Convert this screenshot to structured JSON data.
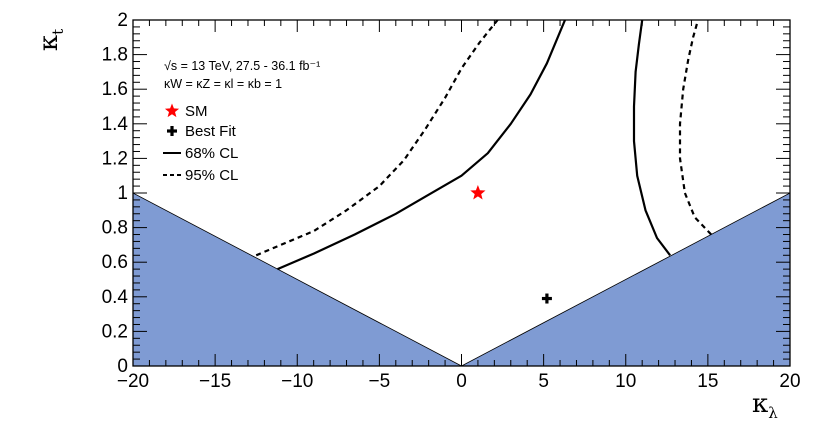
{
  "chart_data": {
    "type": "line",
    "xlabel": "κ",
    "xlabel_sub": "λ",
    "ylabel": "κ",
    "ylabel_sub": "t",
    "xlim": [
      -20,
      20
    ],
    "ylim": [
      0,
      2
    ],
    "x_ticks": [
      -20,
      -15,
      -10,
      -5,
      0,
      5,
      10,
      15,
      20
    ],
    "x_tick_labels": [
      "−20",
      "−15",
      "−10",
      "−5",
      "0",
      "5",
      "10",
      "15",
      "20"
    ],
    "y_ticks": [
      0,
      0.2,
      0.4,
      0.6,
      0.8,
      1,
      1.2,
      1.4,
      1.6,
      1.8,
      2
    ],
    "y_tick_labels": [
      "0",
      "0.2",
      "0.4",
      "0.6",
      "0.8",
      "1",
      "1.2",
      "1.4",
      "1.6",
      "1.8",
      "2"
    ],
    "annotations": {
      "line1": "√s = 13 TeV, 27.5 - 36.1 fb⁻¹",
      "line2": "κW = κZ = κl = κb = 1"
    },
    "legend": [
      {
        "label": "SM",
        "marker": "star",
        "color": "#ff0000"
      },
      {
        "label": "Best Fit",
        "marker": "cross",
        "color": "#000000"
      },
      {
        "label": "68% CL",
        "style": "solid",
        "color": "#000000"
      },
      {
        "label": "95% CL",
        "style": "dashed",
        "color": "#000000"
      }
    ],
    "legend_position": "top-left",
    "excluded_region_color": "#7f9bd3",
    "excluded_regions": [
      {
        "x": [
          -20,
          0,
          -20
        ],
        "y": [
          0,
          0,
          1
        ]
      },
      {
        "x": [
          0,
          20,
          20
        ],
        "y": [
          0,
          0,
          1
        ]
      }
    ],
    "points": {
      "sm": {
        "x": 1,
        "y": 1
      },
      "best_fit": {
        "x": 5.2,
        "y": 0.39
      }
    },
    "series": [
      {
        "style": "solid",
        "x": [
          -11.2,
          -9,
          -6.5,
          -4,
          -2,
          0,
          1.6,
          3,
          4.2,
          5.2,
          6.3
        ],
        "y": [
          0.56,
          0.65,
          0.76,
          0.88,
          0.99,
          1.1,
          1.23,
          1.4,
          1.57,
          1.75,
          2.0
        ]
      },
      {
        "style": "solid",
        "x": [
          12.7,
          11.9,
          11.2,
          10.7,
          10.5,
          10.5,
          10.6,
          10.8,
          11.0
        ],
        "y": [
          0.64,
          0.74,
          0.9,
          1.1,
          1.3,
          1.5,
          1.7,
          1.86,
          2.0
        ]
      },
      {
        "style": "dashed",
        "x": [
          -12.5,
          -11,
          -9,
          -7,
          -5,
          -3.5,
          -2.2,
          -1,
          0,
          1.1,
          2.2
        ],
        "y": [
          0.64,
          0.7,
          0.78,
          0.9,
          1.04,
          1.19,
          1.37,
          1.55,
          1.72,
          1.87,
          2.0
        ]
      },
      {
        "style": "dashed",
        "x": [
          15.2,
          14.2,
          13.6,
          13.3,
          13.3,
          13.5,
          13.8,
          14.1,
          14.4
        ],
        "y": [
          0.76,
          0.86,
          1.0,
          1.2,
          1.4,
          1.6,
          1.77,
          1.9,
          2.0
        ]
      }
    ]
  }
}
